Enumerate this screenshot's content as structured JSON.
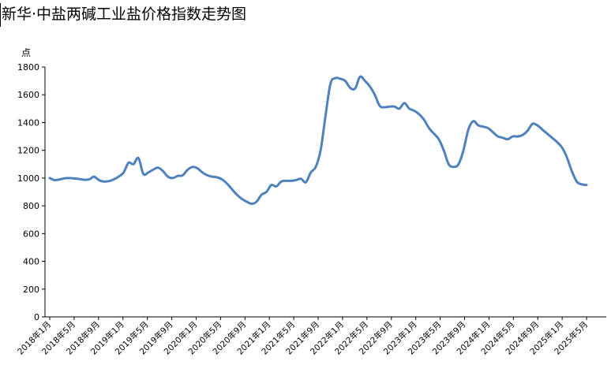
{
  "chart_data": {
    "type": "line",
    "title": "新华·中盐两碱工业盐价格指数走势图",
    "ylabel": "点",
    "ylim": [
      0,
      1800
    ],
    "yticks": [
      0,
      200,
      400,
      600,
      800,
      1000,
      1200,
      1400,
      1600,
      1800
    ],
    "xtick_labels": [
      "2018年1月",
      "2018年5月",
      "2018年9月",
      "2019年1月",
      "2019年5月",
      "2019年9月",
      "2020年1月",
      "2020年5月",
      "2020年9月",
      "2021年1月",
      "2021年5月",
      "2021年9月",
      "2022年1月",
      "2022年5月",
      "2022年9月",
      "2023年1月",
      "2023年5月",
      "2023年9月",
      "2024年1月",
      "2024年5月",
      "2024年9月",
      "2025年1月",
      "2025年5月"
    ],
    "grid": false,
    "legend": "none",
    "line_color": "#4f81bd",
    "series": [
      {
        "x_start": "2018-01",
        "x_end": "2025-05",
        "x_step": "half-month",
        "values": [
          1000,
          985,
          990,
          998,
          1000,
          997,
          993,
          988,
          990,
          1010,
          985,
          975,
          978,
          990,
          1010,
          1040,
          1110,
          1100,
          1145,
          1030,
          1040,
          1060,
          1075,
          1050,
          1010,
          1000,
          1015,
          1020,
          1060,
          1080,
          1070,
          1040,
          1020,
          1010,
          1005,
          990,
          960,
          920,
          880,
          850,
          830,
          815,
          830,
          880,
          900,
          950,
          940,
          975,
          980,
          980,
          985,
          995,
          970,
          1040,
          1080,
          1200,
          1450,
          1680,
          1720,
          1715,
          1700,
          1650,
          1645,
          1730,
          1700,
          1660,
          1600,
          1520,
          1510,
          1515,
          1515,
          1500,
          1540,
          1500,
          1485,
          1460,
          1420,
          1360,
          1320,
          1280,
          1200,
          1100,
          1080,
          1100,
          1200,
          1350,
          1410,
          1380,
          1370,
          1360,
          1330,
          1300,
          1290,
          1280,
          1300,
          1300,
          1310,
          1340,
          1390,
          1380,
          1350,
          1320,
          1290,
          1260,
          1220,
          1150,
          1050,
          975,
          955,
          950
        ]
      }
    ]
  }
}
